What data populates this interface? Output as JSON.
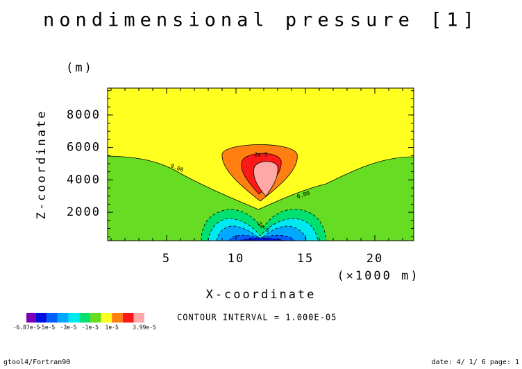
{
  "chart_data": {
    "type": "contour",
    "title": "nondimensional pressure [1]",
    "xlabel": "X-coordinate",
    "xunit": "(×1000 m)",
    "ylabel": "Z-coordinate",
    "yunit": "(m)",
    "xlim": [
      0.75,
      22.8
    ],
    "xticks": [
      5,
      10,
      15,
      20
    ],
    "ylim": [
      250,
      9660
    ],
    "yticks": [
      2000,
      4000,
      6000,
      8000
    ],
    "levels": [
      -6.87e-05,
      -6e-05,
      -5e-05,
      -4e-05,
      -3e-05,
      -2e-05,
      -1e-05,
      0,
      1e-05,
      2e-05,
      3e-05,
      3.99e-05
    ],
    "colors": [
      "#7a00b8",
      "#0010e0",
      "#0060ff",
      "#00a8ff",
      "#00e8f0",
      "#00e070",
      "#66dd22",
      "#ffff20",
      "#ff8010",
      "#ff1818",
      "#ffa8a8"
    ],
    "colorbar_ticks": [
      {
        "value": -6.87e-05,
        "label": "-6.87e-5"
      },
      {
        "value": -5e-05,
        "label": "-5e-5"
      },
      {
        "value": -3e-05,
        "label": "-3e-5"
      },
      {
        "value": -1e-05,
        "label": "-1e-5"
      },
      {
        "value": 1e-05,
        "label": "1e-5"
      },
      {
        "value": 3.99e-05,
        "label": "3.99e-5"
      }
    ],
    "contour_labels": [
      "0.00",
      "0.00",
      "2e-5",
      "-2e-5"
    ],
    "interval_note": "CONTOUR INTERVAL = 1.000E-05",
    "footer_left": "gtool4/Fortran90",
    "footer_right": "date: 4/ 1/ 6 page: 1"
  }
}
